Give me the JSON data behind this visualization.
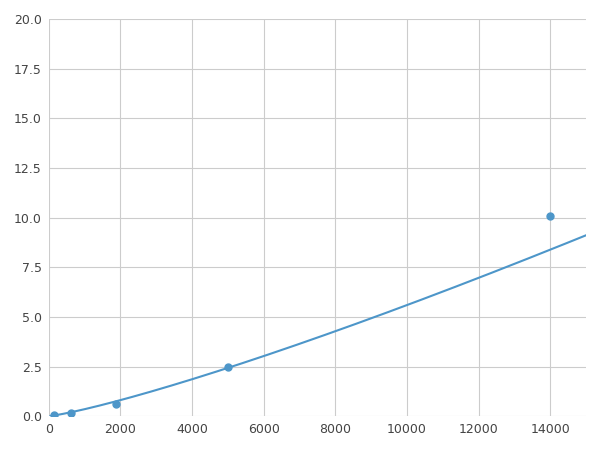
{
  "x": [
    156,
    625,
    1875,
    5000,
    14000
  ],
  "y": [
    0.05,
    0.15,
    0.6,
    2.5,
    10.1
  ],
  "line_color": "#4d96c9",
  "marker_color": "#4d96c9",
  "marker_size": 5,
  "xlim": [
    0,
    15000
  ],
  "ylim": [
    0,
    20
  ],
  "xticks": [
    0,
    2000,
    4000,
    6000,
    8000,
    10000,
    12000,
    14000
  ],
  "yticks": [
    0.0,
    2.5,
    5.0,
    7.5,
    10.0,
    12.5,
    15.0,
    17.5,
    20.0
  ],
  "grid_color": "#cccccc",
  "background_color": "#ffffff",
  "figsize": [
    6.0,
    4.5
  ],
  "dpi": 100
}
